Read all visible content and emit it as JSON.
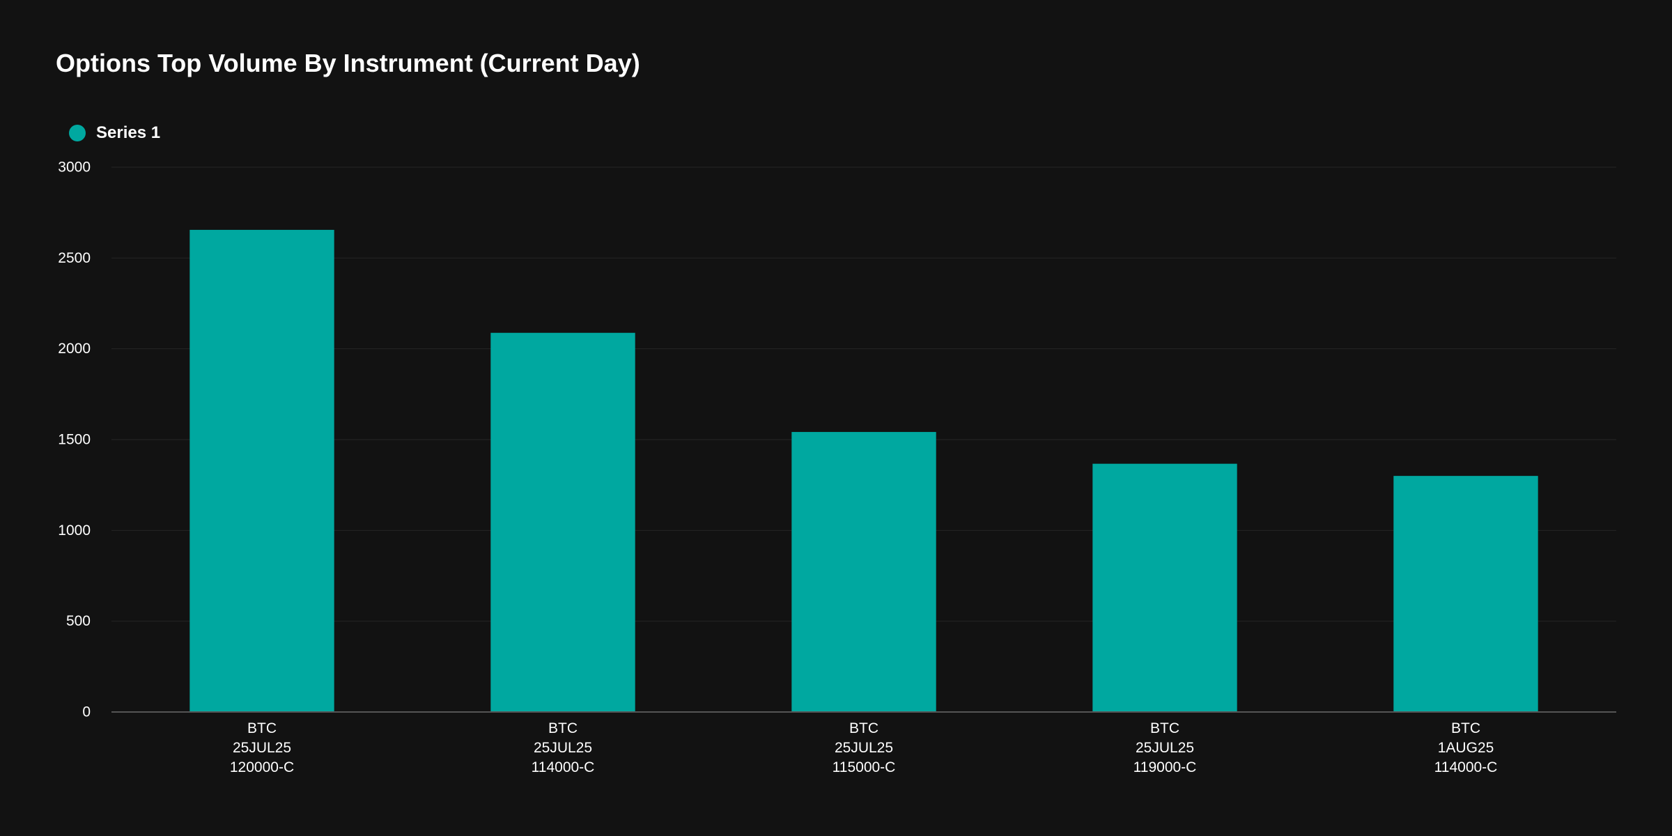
{
  "chart_data": {
    "type": "bar",
    "title": "Options Top Volume By Instrument (Current Day)",
    "xlabel": "",
    "ylabel": "",
    "categories": [
      [
        "BTC",
        "25JUL25",
        "120000-C"
      ],
      [
        "BTC",
        "25JUL25",
        "114000-C"
      ],
      [
        "BTC",
        "25JUL25",
        "115000-C"
      ],
      [
        "BTC",
        "25JUL25",
        "119000-C"
      ],
      [
        "BTC",
        "1AUG25",
        "114000-C"
      ]
    ],
    "series": [
      {
        "name": "Series 1",
        "color": "#00a8a0",
        "values": [
          2655,
          2088,
          1542,
          1367,
          1300
        ]
      }
    ],
    "ylim": [
      0,
      3000
    ],
    "yticks": [
      0,
      500,
      1000,
      1500,
      2000,
      2500,
      3000
    ],
    "grid": true,
    "legend": "top-left"
  }
}
